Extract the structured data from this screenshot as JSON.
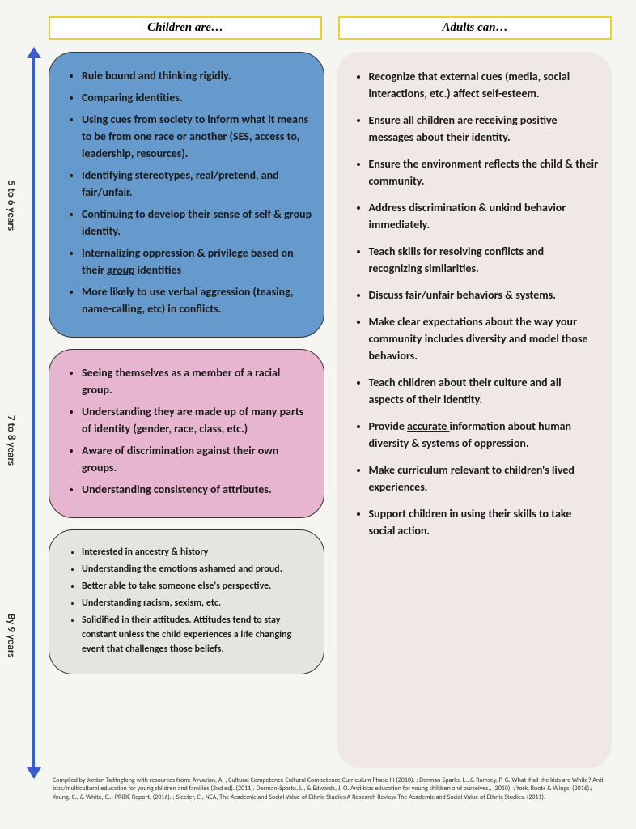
{
  "headers": {
    "left": "Children are…",
    "right": "Adults  can…"
  },
  "axis": {
    "l1": "5 to 6 years",
    "l2": "7 to 8 years",
    "l3": "By 9 years"
  },
  "blue": {
    "i0": "Rule bound and thinking rigidly.",
    "i1": "Comparing identities.",
    "i2": "Using cues from society to inform what it means to be from one race or another (SES, access to, leadership, resources).",
    "i3": "Identifying stereotypes, real/pretend, and fair/unfair.",
    "i4": "Continuing to develop their sense of self & group identity.",
    "i5a": "Internalizing oppression & privilege based on their ",
    "i5u": "group",
    "i5b": " identities",
    "i6": "More likely to use verbal aggression (teasing, name-calling, etc) in conflicts."
  },
  "pink": {
    "i0": "Seeing themselves as a member of a racial group.",
    "i1": "Understanding they are made up of many parts of identity (gender, race, class, etc.)",
    "i2": "Aware of discrimination against their own groups.",
    "i3": "Understanding consistency of attributes."
  },
  "grey": {
    "i0": "Interested in ancestry & history",
    "i1": "Understanding  the emotions ashamed and proud.",
    "i2": "Better able to take someone else's perspective.",
    "i3": "Understanding racism, sexism, etc.",
    "i4": "Solidified in their attitudes. Attitudes tend to stay constant unless the child experiences a life changing event that challenges those beliefs."
  },
  "right": {
    "i0": "Recognize that external cues (media, social interactions, etc.) affect self-esteem.",
    "i1": "Ensure all children are receiving positive messages about their identity.",
    "i2": "Ensure the environment reflects the child & their community.",
    "i3": "Address discrimination & unkind behavior immediately.",
    "i4": "Teach skills for resolving conflicts and recognizing similarities.",
    "i5": "Discuss fair/unfair behaviors & systems.",
    "i6": "Make clear expectations about the way your community includes diversity and model those behaviors.",
    "i7": "Teach children about their culture and all aspects of their identity.",
    "i8a": "Provide ",
    "i8u": "accurate ",
    "i8b": "information about human diversity & systems of oppression.",
    "i9": "Make curriculum relevant to children's lived experiences.",
    "i10": "Support children in using their skills to take social action."
  },
  "citation": "Compiled by Jordan Taitingfong with resources from:   Ayvazian, A. , Cultural Competence Cultural Competence Curriculum Phase III (2010). ; Derman-Sparks, L., & Ramsey, P. G. What if all the kids are White? Anti-bias/multicultural education for young children and families (2nd ed).  (2011). Derman-Sparks, L., & Edwards, J. O. Anti-bias education for young children and ourselves., (2010). ; York, Roots & Wings, (2016).; Young, C., & White, C..; PRIDE Report, (2016). ; Sleeter, C., NEA, The Academic and Social Value of Ethnic Studies A Research Review The Academic and Social Value of Ethnic Studies. (2011)."
}
